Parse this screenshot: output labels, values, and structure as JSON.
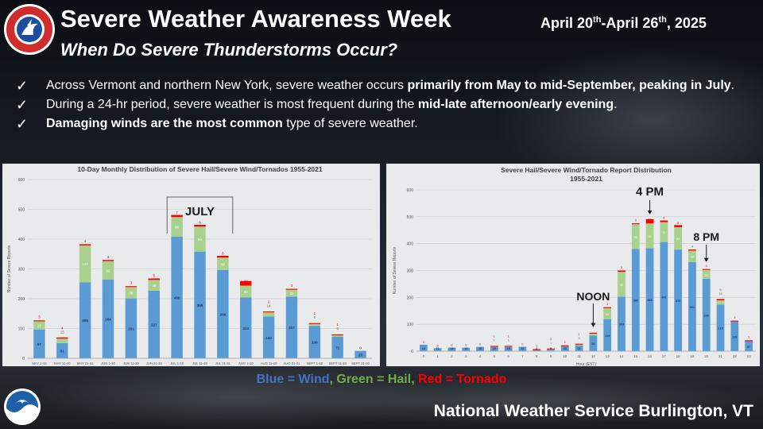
{
  "header": {
    "title": "Severe Weather Awareness Week",
    "dates_prefix": "April 20",
    "dates_sup1": "th",
    "dates_mid": "-April 26",
    "dates_sup2": "th",
    "dates_suffix": ", 2025",
    "subtitle": "When Do Severe Thunderstorms Occur?",
    "logo_text": "NATIONAL WEATHER SERVICE"
  },
  "bullets": [
    {
      "pre": "Across Vermont and northern New York, severe weather occurs ",
      "bold": "primarily from May to mid-September, peaking in July",
      "post": "."
    },
    {
      "pre": "During a 24-hr period, severe weather is most frequent during the ",
      "bold": "mid-late afternoon/early evening",
      "post": "."
    },
    {
      "pre": "",
      "bold": "Damaging winds are the most common",
      "post": " type of severe weather."
    }
  ],
  "check_glyph": "✓",
  "legend": {
    "wind": "Blue = Wind",
    "sep1": ", ",
    "hail": "Green = Hail",
    "sep2": ", ",
    "tornado": "Red = Tornado"
  },
  "footer": {
    "text": "National Weather Service Burlington, VT",
    "noaa_logo": "NOAA"
  },
  "colors": {
    "wind": "#5b9bd5",
    "hail": "#a9d18e",
    "tornado": "#ff0000",
    "wind_legend": "#4472c4",
    "hail_legend": "#70ad47",
    "tornado_legend": "#ff0000"
  },
  "chart_data": [
    {
      "type": "bar",
      "stacked": true,
      "title": "10-Day Monthly Distribution of Severe Hail/Severe Wind/Tornados 1955-2021",
      "ylabel": "Number of Severe Reports",
      "xlabel": "",
      "ylim": [
        0,
        600
      ],
      "yticks": [
        0,
        100,
        200,
        300,
        400,
        500,
        600
      ],
      "grid": true,
      "categories": [
        "MAY 1-10",
        "MAY 11-20",
        "MAY 21-31",
        "JUN 1-10",
        "JUN 11-20",
        "JUN 21-30",
        "JUL 1-10",
        "JUL 11-20",
        "JUL 21-31",
        "AUG 1-10",
        "AUG 11-20",
        "AUG 21-31",
        "SEPT 1-10",
        "SEPT 11-20",
        "SEPT 21-30"
      ],
      "series": [
        {
          "name": "Wind",
          "values": [
            97,
            51,
            255,
            264,
            201,
            227,
            408,
            358,
            296,
            204,
            140,
            207,
            109,
            72,
            25
          ]
        },
        {
          "name": "Hail",
          "values": [
            27,
            15,
            124,
            62,
            38,
            36,
            66,
            84,
            42,
            40,
            14,
            23,
            6,
            5,
            0
          ]
        },
        {
          "name": "Tornado",
          "values": [
            3,
            4,
            4,
            4,
            3,
            5,
            7,
            6,
            6,
            10,
            2,
            3,
            1,
            1,
            0
          ]
        }
      ],
      "annotations": [
        {
          "text": "JULY",
          "target": "JUL 1-10 to JUL 21-31"
        }
      ]
    },
    {
      "type": "bar",
      "stacked": true,
      "title": "Severe Hail/Severe Wind/Tornado Report Distribution",
      "subtitle": "1955-2021",
      "ylabel": "Number of Severe Reports",
      "xlabel": "Hour (EST)",
      "ylim": [
        0,
        600
      ],
      "yticks": [
        0,
        100,
        200,
        300,
        400,
        500,
        600
      ],
      "grid": true,
      "categories": [
        "0",
        "1",
        "2",
        "3",
        "4",
        "5",
        "6",
        "7",
        "8",
        "9",
        "10",
        "11",
        "12",
        "13",
        "14",
        "15",
        "16",
        "17",
        "18",
        "19",
        "20",
        "21",
        "22",
        "23"
      ],
      "series": [
        {
          "name": "Wind",
          "values": [
            24,
            11,
            13,
            13,
            16,
            15,
            15,
            16,
            4,
            5,
            18,
            21,
            58,
            119,
            203,
            380,
            383,
            406,
            378,
            331,
            269,
            173,
            110,
            37
          ]
        },
        {
          "name": "Hail",
          "values": [
            0,
            0,
            0,
            0,
            0,
            1,
            1,
            0,
            0,
            1,
            0,
            3,
            7,
            41,
            92,
            92,
            92,
            74,
            83,
            43,
            33,
            16,
            0,
            0
          ]
        },
        {
          "name": "Tornado",
          "values": [
            0,
            0,
            0,
            0,
            0,
            1,
            1,
            0,
            1,
            2,
            2,
            1,
            1,
            3,
            5,
            3,
            10,
            6,
            8,
            4,
            3,
            5,
            3,
            1
          ]
        }
      ],
      "annotations": [
        {
          "text": "NOON",
          "target": "12"
        },
        {
          "text": "4 PM",
          "target": "16"
        },
        {
          "text": "8 PM",
          "target": "20"
        }
      ]
    }
  ]
}
